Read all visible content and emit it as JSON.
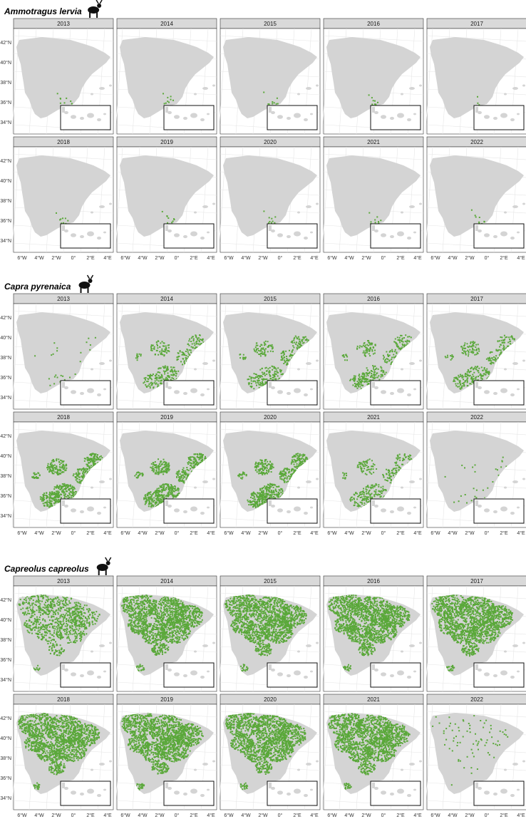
{
  "species": [
    {
      "name": "Ammotragus lervia",
      "icon": "barbary-sheep-icon",
      "years_with_records": [
        "2013",
        "2014",
        "2015",
        "2016",
        "2017",
        "2018",
        "2019",
        "2020",
        "2021",
        "2022"
      ]
    },
    {
      "name": "Capra pyrenaica",
      "icon": "ibex-icon",
      "years_with_records": [
        "2013",
        "2014",
        "2015",
        "2016",
        "2017",
        "2018",
        "2019",
        "2020",
        "2021",
        "2022"
      ]
    },
    {
      "name": "Capreolus capreolus",
      "icon": "roe-deer-icon",
      "years_with_records": [
        "2013",
        "2014",
        "2015",
        "2016",
        "2017",
        "2018",
        "2019",
        "2020",
        "2021",
        "2022"
      ]
    }
  ],
  "years": [
    "2013",
    "2014",
    "2015",
    "2016",
    "2017",
    "2018",
    "2019",
    "2020",
    "2021",
    "2022"
  ],
  "lat_labels": [
    "42°N",
    "40°N",
    "38°N",
    "36°N",
    "34°N"
  ],
  "lon_labels": [
    "6°W",
    "4°W",
    "2°W",
    "0°",
    "2°E",
    "4°E"
  ],
  "colors": {
    "presence": "#5aa83a",
    "land": "#d4d4d4",
    "strip_bg": "#d9d9d9",
    "graticule": "#e6e6e6",
    "panel_border": "#333333"
  },
  "presence_extent": {
    "Ammotragus lervia": [
      "low",
      "low",
      "low",
      "low",
      "very-low",
      "low",
      "low",
      "low",
      "low",
      "low"
    ],
    "Capra pyrenaica": [
      "very-low",
      "medium",
      "medium",
      "medium",
      "medium",
      "high",
      "high",
      "high",
      "medium",
      "very-low"
    ],
    "Capreolus capreolus": [
      "medium",
      "high",
      "high",
      "high",
      "high",
      "high",
      "high",
      "high",
      "high",
      "very-low"
    ]
  }
}
